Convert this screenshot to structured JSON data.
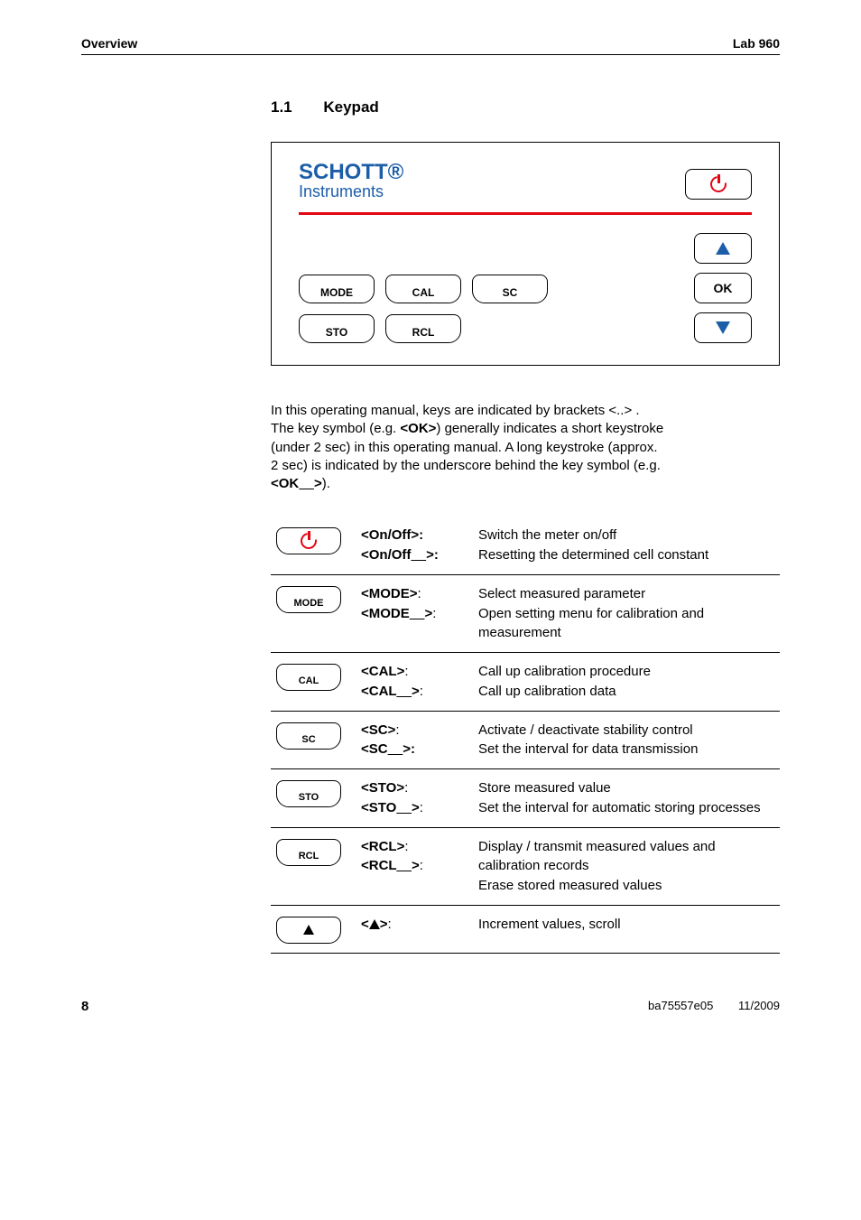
{
  "header": {
    "left": "Overview",
    "right": "Lab 960"
  },
  "section": {
    "number": "1.1",
    "title": "Keypad"
  },
  "logo": {
    "line1": "SCHOTT®",
    "line2": "Instruments"
  },
  "keypad": {
    "mode": "MODE",
    "cal": "CAL",
    "sc": "SC",
    "sto": "STO",
    "rcl": "RCL",
    "ok": "OK"
  },
  "intro": {
    "l1": "In this operating manual, keys are indicated by brackets <..> .",
    "l2a": "The key symbol (e.g. ",
    "l2b": "<OK>",
    "l2c": ") generally indicates a short keystroke",
    "l3": "(under 2 sec) in this operating manual. A long keystroke (approx.",
    "l4": "2 sec) is indicated by the underscore behind the key symbol (e.g.",
    "l5a": "<OK",
    "l5u": "    ",
    "l5b": ">",
    "l5c": ")."
  },
  "table": {
    "rows": [
      {
        "icon_type": "power",
        "k1a": "<On/Off>:",
        "d1": "Switch the meter on/off",
        "k2a": "<On/Off",
        "k2u": "    ",
        "k2b": ">:",
        "d2": "Resetting the determined cell constant"
      },
      {
        "icon_type": "text",
        "icon_label": "MODE",
        "k1a": "<MODE>",
        "k1s": ":",
        "d1": "Select measured parameter",
        "k2a": "<MODE",
        "k2u": "    ",
        "k2b": ">",
        "k2s": ":",
        "d2": "Open setting menu for calibration and measurement"
      },
      {
        "icon_type": "text",
        "icon_label": "CAL",
        "k1a": "<CAL>",
        "k1s": ":",
        "d1": "Call up calibration procedure",
        "k2a": "<CAL",
        "k2u": "    ",
        "k2b": ">",
        "k2s": ":",
        "d2": "Call up calibration data"
      },
      {
        "icon_type": "text",
        "icon_label": "SC",
        "k1a": "<SC>",
        "k1s": ":",
        "d1": "Activate / deactivate stability control",
        "k2a": "<SC",
        "k2u": "    ",
        "k2b": ">:",
        "d2": "Set the interval for data transmission"
      },
      {
        "icon_type": "text",
        "icon_label": "STO",
        "k1a": "<STO>",
        "k1s": ":",
        "d1": "Store measured value",
        "k2a": "<STO",
        "k2u": "    ",
        "k2b": ">",
        "k2s": ":",
        "d2": "Set the interval for automatic storing processes"
      },
      {
        "icon_type": "text",
        "icon_label": "RCL",
        "k1a": "<RCL>",
        "k1s": ":",
        "d1": "Display / transmit measured values and calibration records",
        "k2a": "<RCL",
        "k2u": "    ",
        "k2b": ">",
        "k2s": ":",
        "d2": "Erase stored measured values"
      },
      {
        "icon_type": "arrow",
        "k1pre": "<",
        "k1post": ">",
        "k1s": ":",
        "d1": "Increment values, scroll"
      }
    ]
  },
  "footer": {
    "page": "8",
    "doc": "ba75557e05",
    "date": "11/2009"
  }
}
